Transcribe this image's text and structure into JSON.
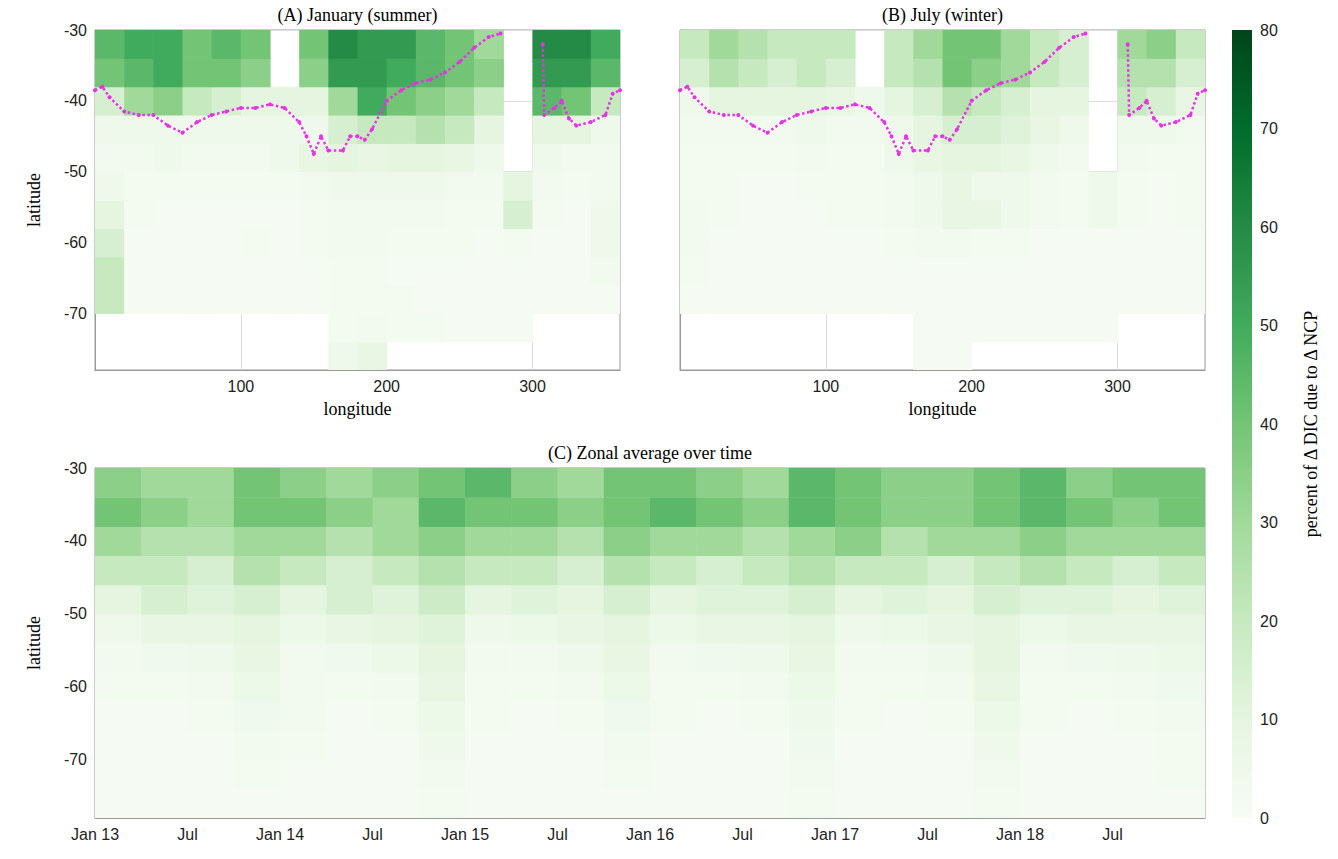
{
  "chart_data": [
    {
      "type": "heatmap",
      "title": "(A) January (summer)",
      "xlabel": "longitude",
      "ylabel": "latitude",
      "xlim": [
        0,
        360
      ],
      "xticks": [
        100,
        200,
        300
      ],
      "ylim": [
        -78,
        -30
      ],
      "yticks": [
        -70,
        -60,
        -50,
        -40,
        -30
      ],
      "grid": true,
      "x_bins": [
        0,
        20,
        40,
        60,
        80,
        100,
        120,
        140,
        160,
        180,
        200,
        220,
        240,
        260,
        280,
        300,
        320,
        340,
        360
      ],
      "y_bins": [
        -78,
        -74,
        -70,
        -66,
        -62,
        -58,
        -54,
        -50,
        -46,
        -42,
        -38,
        -34,
        -30
      ],
      "cells": [
        [
          null,
          null,
          null,
          null,
          null,
          null,
          null,
          null,
          5,
          8,
          null,
          null,
          null,
          null,
          null,
          null,
          null,
          null
        ],
        [
          null,
          null,
          null,
          null,
          null,
          null,
          null,
          null,
          2,
          3,
          2,
          2,
          1,
          1,
          1,
          null,
          null,
          null
        ],
        [
          20,
          1,
          1,
          1,
          1,
          1,
          1,
          1,
          2,
          2,
          2,
          1,
          1,
          1,
          1,
          1,
          1,
          1
        ],
        [
          20,
          1,
          1,
          1,
          1,
          1,
          1,
          1,
          2,
          2,
          1,
          1,
          1,
          1,
          1,
          1,
          1,
          3
        ],
        [
          15,
          1,
          1,
          1,
          1,
          2,
          1,
          2,
          3,
          3,
          2,
          2,
          2,
          1,
          2,
          1,
          1,
          5
        ],
        [
          10,
          2,
          1,
          1,
          1,
          1,
          1,
          2,
          3,
          3,
          3,
          3,
          2,
          2,
          15,
          2,
          1,
          5
        ],
        [
          5,
          2,
          2,
          2,
          2,
          2,
          2,
          3,
          5,
          5,
          5,
          5,
          3,
          3,
          10,
          3,
          2,
          3
        ],
        [
          3,
          3,
          5,
          3,
          3,
          3,
          5,
          8,
          10,
          8,
          10,
          10,
          8,
          5,
          null,
          5,
          3,
          3
        ],
        [
          5,
          5,
          5,
          5,
          5,
          5,
          5,
          5,
          15,
          20,
          20,
          25,
          20,
          10,
          null,
          10,
          10,
          5
        ],
        [
          15,
          30,
          35,
          20,
          15,
          10,
          10,
          10,
          30,
          50,
          40,
          35,
          30,
          20,
          null,
          45,
          40,
          20
        ],
        [
          40,
          45,
          50,
          40,
          40,
          35,
          null,
          35,
          55,
          55,
          50,
          45,
          40,
          35,
          null,
          55,
          55,
          45
        ],
        [
          45,
          50,
          50,
          40,
          45,
          40,
          null,
          40,
          60,
          55,
          55,
          45,
          40,
          30,
          null,
          60,
          60,
          50
        ]
      ],
      "front": {
        "color": "#e633e6",
        "marker": "circle",
        "line_style": "dotted",
        "lon": [
          0,
          5,
          10,
          20,
          30,
          40,
          50,
          60,
          70,
          80,
          90,
          100,
          110,
          120,
          130,
          140,
          145,
          150,
          155,
          160,
          170,
          175,
          180,
          185,
          190,
          200,
          210,
          220,
          230,
          240,
          250,
          260,
          270,
          278,
          null,
          307,
          308,
          315,
          320,
          325,
          330,
          340,
          350,
          355,
          360
        ],
        "lat": [
          -38.5,
          -38,
          -39.5,
          -41.5,
          -42,
          -42,
          -43.5,
          -44.5,
          -43,
          -42,
          -41.5,
          -41,
          -41,
          -40.5,
          -41,
          -43,
          -45,
          -47.5,
          -45,
          -47,
          -47,
          -45,
          -45,
          -45.5,
          -44,
          -40,
          -38.5,
          -37.5,
          -37,
          -36,
          -34.5,
          -32.5,
          -31,
          -30.5,
          null,
          -32,
          -42,
          -41,
          -40,
          -42.5,
          -43.5,
          -43,
          -42,
          -39,
          -38.5
        ]
      }
    },
    {
      "type": "heatmap",
      "title": "(B) July (winter)",
      "xlabel": "longitude",
      "tick_labels": "x",
      "xlim": [
        0,
        360
      ],
      "xticks": [
        100,
        200,
        300
      ],
      "ylim": [
        -78,
        -30
      ],
      "yticks": [
        -70,
        -60,
        -50,
        -40,
        -30
      ],
      "grid": true,
      "x_bins": [
        0,
        20,
        40,
        60,
        80,
        100,
        120,
        140,
        160,
        180,
        200,
        220,
        240,
        260,
        280,
        300,
        320,
        340,
        360
      ],
      "y_bins": [
        -78,
        -74,
        -70,
        -66,
        -62,
        -58,
        -54,
        -50,
        -46,
        -42,
        -38,
        -34,
        -30
      ],
      "cells": [
        [
          null,
          null,
          null,
          null,
          null,
          null,
          null,
          null,
          1,
          1,
          null,
          null,
          null,
          null,
          null,
          null,
          null,
          null
        ],
        [
          null,
          null,
          null,
          null,
          null,
          null,
          null,
          null,
          1,
          1,
          1,
          1,
          1,
          1,
          1,
          null,
          null,
          null
        ],
        [
          1,
          1,
          1,
          1,
          1,
          1,
          1,
          1,
          1,
          1,
          1,
          1,
          1,
          1,
          1,
          1,
          1,
          1
        ],
        [
          2,
          1,
          1,
          1,
          1,
          1,
          1,
          1,
          1,
          1,
          1,
          1,
          1,
          1,
          1,
          1,
          1,
          1
        ],
        [
          3,
          1,
          1,
          1,
          1,
          1,
          1,
          2,
          3,
          3,
          2,
          2,
          1,
          1,
          1,
          1,
          1,
          1
        ],
        [
          3,
          2,
          1,
          1,
          1,
          2,
          2,
          3,
          5,
          8,
          8,
          5,
          3,
          2,
          5,
          2,
          1,
          2
        ],
        [
          2,
          2,
          1,
          1,
          2,
          2,
          2,
          3,
          5,
          8,
          5,
          5,
          3,
          2,
          5,
          2,
          1,
          2
        ],
        [
          2,
          2,
          2,
          2,
          3,
          2,
          2,
          5,
          8,
          10,
          10,
          8,
          5,
          3,
          null,
          3,
          2,
          2
        ],
        [
          3,
          3,
          3,
          3,
          5,
          3,
          3,
          5,
          10,
          15,
          15,
          12,
          8,
          5,
          null,
          5,
          5,
          3
        ],
        [
          5,
          10,
          10,
          10,
          10,
          8,
          5,
          10,
          15,
          25,
          20,
          15,
          10,
          10,
          null,
          20,
          15,
          8
        ],
        [
          15,
          25,
          20,
          15,
          20,
          15,
          null,
          20,
          25,
          40,
          35,
          30,
          20,
          15,
          null,
          25,
          25,
          15
        ],
        [
          20,
          30,
          25,
          20,
          20,
          20,
          null,
          20,
          30,
          40,
          40,
          30,
          20,
          15,
          null,
          30,
          35,
          20
        ]
      ],
      "front": {
        "color": "#e633e6",
        "marker": "circle",
        "line_style": "dotted",
        "lon": [
          0,
          5,
          10,
          20,
          30,
          40,
          50,
          60,
          70,
          80,
          90,
          100,
          110,
          120,
          130,
          140,
          145,
          150,
          155,
          160,
          170,
          175,
          180,
          185,
          190,
          200,
          210,
          220,
          230,
          240,
          250,
          260,
          270,
          278,
          null,
          307,
          308,
          315,
          320,
          325,
          330,
          340,
          350,
          355,
          360
        ],
        "lat": [
          -38.5,
          -38,
          -39.5,
          -41.5,
          -42,
          -42,
          -43.5,
          -44.5,
          -43,
          -42,
          -41.5,
          -41,
          -41,
          -40.5,
          -41,
          -43,
          -45,
          -47.5,
          -45,
          -47,
          -47,
          -45,
          -45,
          -45.5,
          -44,
          -40,
          -38.5,
          -37.5,
          -37,
          -36,
          -34.5,
          -32.5,
          -31,
          -30.5,
          null,
          -32,
          -42,
          -41,
          -40,
          -42.5,
          -43.5,
          -43,
          -42,
          -39,
          -38.5
        ]
      }
    },
    {
      "type": "heatmap",
      "title": "(C) Zonal average over time",
      "ylabel": "latitude",
      "xlim": [
        0,
        72
      ],
      "xticks": [
        {
          "value": 0,
          "label": "Jan 13"
        },
        {
          "value": 6,
          "label": "Jul"
        },
        {
          "value": 12,
          "label": "Jan 14"
        },
        {
          "value": 18,
          "label": "Jul"
        },
        {
          "value": 24,
          "label": "Jan 15"
        },
        {
          "value": 30,
          "label": "Jul"
        },
        {
          "value": 36,
          "label": "Jan 16"
        },
        {
          "value": 42,
          "label": "Jul"
        },
        {
          "value": 48,
          "label": "Jan 17"
        },
        {
          "value": 54,
          "label": "Jul"
        },
        {
          "value": 60,
          "label": "Jan 18"
        },
        {
          "value": 66,
          "label": "Jul"
        }
      ],
      "ylim": [
        -78,
        -30
      ],
      "yticks": [
        -70,
        -60,
        -50,
        -40,
        -30
      ],
      "grid": true,
      "x_bins": [
        0,
        3,
        6,
        9,
        12,
        15,
        18,
        21,
        24,
        27,
        30,
        33,
        36,
        39,
        42,
        45,
        48,
        51,
        54,
        57,
        60,
        63,
        66,
        69,
        72
      ],
      "y_bins": [
        -78,
        -74,
        -70,
        -66,
        -62,
        -58,
        -54,
        -50,
        -46,
        -42,
        -38,
        -34,
        -30
      ],
      "cells": [
        [
          1,
          1,
          1,
          1,
          1,
          1,
          1,
          2,
          1,
          1,
          1,
          1,
          1,
          1,
          1,
          2,
          1,
          1,
          1,
          2,
          1,
          1,
          1,
          1
        ],
        [
          1,
          1,
          1,
          2,
          1,
          1,
          1,
          3,
          1,
          1,
          1,
          2,
          1,
          1,
          1,
          3,
          1,
          1,
          1,
          3,
          1,
          1,
          1,
          2
        ],
        [
          1,
          1,
          1,
          3,
          2,
          1,
          1,
          5,
          1,
          1,
          1,
          3,
          1,
          1,
          1,
          4,
          1,
          1,
          1,
          5,
          1,
          1,
          1,
          2
        ],
        [
          1,
          1,
          2,
          4,
          3,
          1,
          2,
          6,
          2,
          1,
          2,
          4,
          2,
          1,
          2,
          5,
          2,
          1,
          2,
          6,
          2,
          1,
          2,
          3
        ],
        [
          2,
          2,
          3,
          6,
          3,
          2,
          3,
          8,
          2,
          2,
          3,
          6,
          2,
          2,
          3,
          6,
          2,
          2,
          3,
          8,
          2,
          2,
          3,
          4
        ],
        [
          3,
          4,
          5,
          8,
          3,
          4,
          6,
          10,
          3,
          3,
          5,
          8,
          3,
          4,
          5,
          8,
          3,
          3,
          5,
          10,
          3,
          4,
          5,
          6
        ],
        [
          5,
          8,
          8,
          10,
          6,
          8,
          10,
          12,
          5,
          6,
          8,
          10,
          6,
          8,
          8,
          10,
          5,
          6,
          8,
          10,
          6,
          8,
          8,
          8
        ],
        [
          10,
          15,
          12,
          15,
          10,
          15,
          12,
          18,
          10,
          12,
          10,
          15,
          10,
          12,
          12,
          15,
          10,
          12,
          10,
          15,
          12,
          12,
          10,
          12
        ],
        [
          20,
          20,
          15,
          25,
          20,
          15,
          20,
          25,
          20,
          20,
          15,
          25,
          20,
          15,
          20,
          25,
          20,
          20,
          15,
          20,
          25,
          20,
          15,
          20
        ],
        [
          30,
          25,
          25,
          30,
          30,
          25,
          30,
          35,
          30,
          30,
          25,
          35,
          30,
          30,
          25,
          30,
          35,
          25,
          30,
          30,
          35,
          30,
          30,
          30
        ],
        [
          40,
          35,
          30,
          40,
          40,
          35,
          30,
          45,
          40,
          40,
          35,
          40,
          45,
          40,
          35,
          45,
          40,
          35,
          35,
          40,
          45,
          40,
          35,
          40
        ],
        [
          35,
          30,
          30,
          40,
          35,
          30,
          35,
          40,
          45,
          35,
          30,
          40,
          40,
          35,
          30,
          45,
          40,
          35,
          35,
          40,
          45,
          35,
          40,
          40
        ]
      ]
    }
  ],
  "colorbar": {
    "label": "percent of Δ DIC due to Δ NCP",
    "range": [
      0,
      80
    ],
    "ticks": [
      0,
      10,
      20,
      30,
      40,
      50,
      60,
      70,
      80
    ]
  }
}
